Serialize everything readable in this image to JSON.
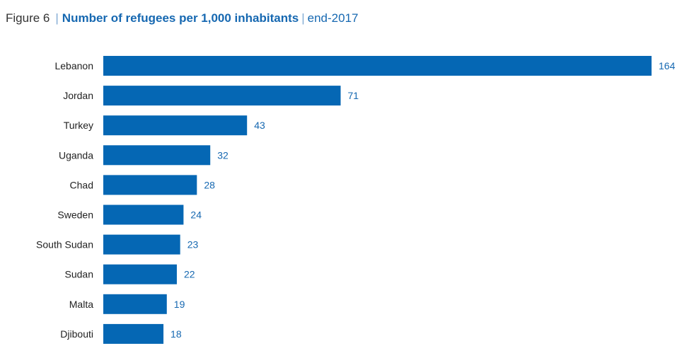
{
  "chart_data": {
    "type": "bar",
    "orientation": "horizontal",
    "figure_label": "Figure 6",
    "title": "Number of refugees per 1,000 inhabitants",
    "subtitle": "end-2017",
    "categories": [
      "Lebanon",
      "Jordan",
      "Turkey",
      "Uganda",
      "Chad",
      "Sweden",
      "South Sudan",
      "Sudan",
      "Malta",
      "Djibouti"
    ],
    "values": [
      164,
      71,
      43,
      32,
      28,
      24,
      23,
      22,
      19,
      18
    ],
    "xlim": [
      0,
      164
    ],
    "grid": false,
    "data_labels": true,
    "bar_color": "#0567b4",
    "label_color": "#1668b1"
  }
}
